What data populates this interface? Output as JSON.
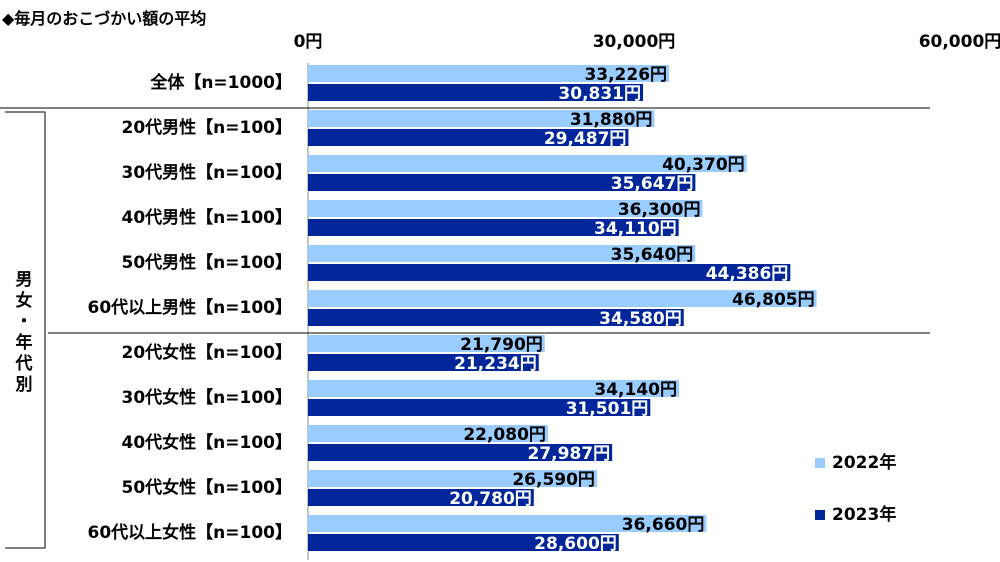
{
  "chart_data": {
    "type": "bar",
    "orientation": "horizontal",
    "title": "◆毎月のおこづかい額の平均",
    "xlim": [
      0,
      60000
    ],
    "xticks": [
      "0円",
      "30,000円",
      "60,000円"
    ],
    "group_label": "男女・年代別",
    "categories": [
      "全体【n=1000】",
      "20代男性【n=100】",
      "30代男性【n=100】",
      "40代男性【n=100】",
      "50代男性【n=100】",
      "60代以上男性【n=100】",
      "20代女性【n=100】",
      "30代女性【n=100】",
      "40代女性【n=100】",
      "50代女性【n=100】",
      "60代以上女性【n=100】"
    ],
    "series": [
      {
        "name": "2022年",
        "color": "#99ccff",
        "values": [
          33226,
          31880,
          40370,
          36300,
          35640,
          46805,
          21790,
          34140,
          22080,
          26590,
          36660
        ],
        "labels": [
          "33,226円",
          "31,880円",
          "40,370円",
          "36,300円",
          "35,640円",
          "46,805円",
          "21,790円",
          "34,140円",
          "22,080円",
          "26,590円",
          "36,660円"
        ]
      },
      {
        "name": "2023年",
        "color": "#002699",
        "values": [
          30831,
          29487,
          35647,
          34110,
          44386,
          34580,
          21234,
          31501,
          27987,
          20780,
          28600
        ],
        "labels": [
          "30,831円",
          "29,487円",
          "35,647円",
          "34,110円",
          "44,386円",
          "34,580円",
          "21,234円",
          "31,501円",
          "27,987円",
          "20,780円",
          "28,600円"
        ]
      }
    ],
    "legend": "bottom-right"
  }
}
